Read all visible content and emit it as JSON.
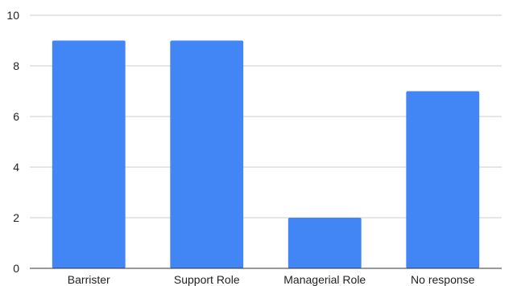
{
  "chart_data": {
    "type": "bar",
    "categories": [
      "Barrister",
      "Support Role",
      "Managerial Role",
      "No response"
    ],
    "values": [
      9,
      9,
      2,
      7
    ],
    "title": "",
    "xlabel": "",
    "ylabel": "",
    "ylim": [
      0,
      10
    ],
    "yticks": [
      0,
      2,
      4,
      6,
      8,
      10
    ],
    "grid": true,
    "legend": "none",
    "bar_color": "#4285F4",
    "grid_color": "#cccccc",
    "axis_color": "#333333"
  }
}
